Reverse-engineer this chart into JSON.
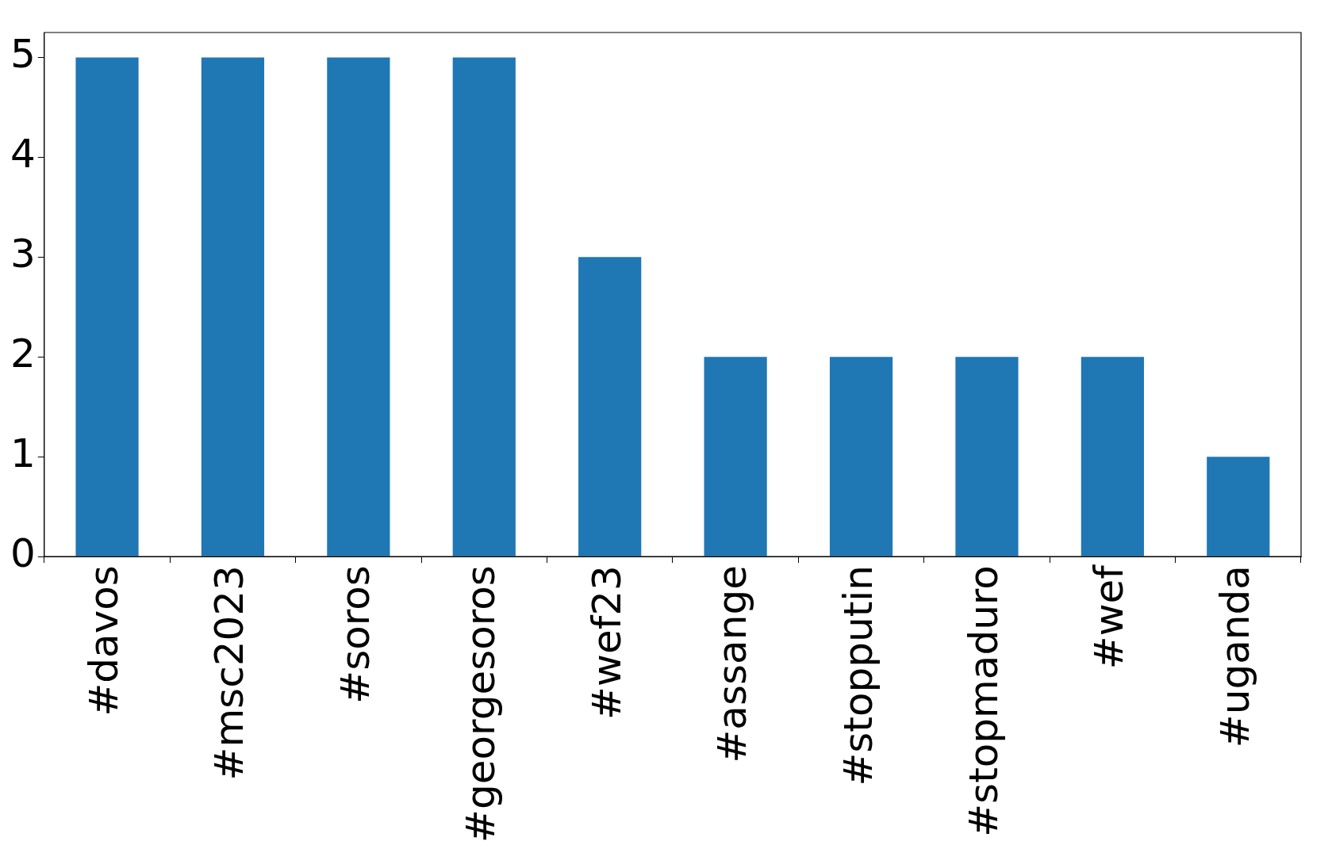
{
  "chart_data": {
    "type": "bar",
    "categories": [
      "#davos",
      "#msc2023",
      "#soros",
      "#georgesoros",
      "#wef23",
      "#assange",
      "#stopputin",
      "#stopmaduro",
      "#wef",
      "#uganda"
    ],
    "values": [
      5,
      5,
      5,
      5,
      3,
      2,
      2,
      2,
      2,
      1
    ],
    "color": "#1f77b4",
    "ylim": [
      0,
      5.25
    ],
    "yticks": [
      0,
      1,
      2,
      3,
      4,
      5
    ],
    "grid": false,
    "legend": false
  }
}
